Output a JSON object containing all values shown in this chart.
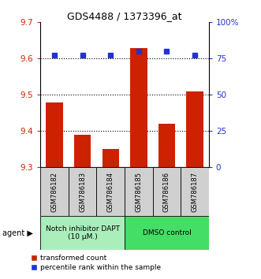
{
  "title": "GDS4488 / 1373396_at",
  "samples": [
    "GSM786182",
    "GSM786183",
    "GSM786184",
    "GSM786185",
    "GSM786186",
    "GSM786187"
  ],
  "red_values": [
    9.48,
    9.39,
    9.35,
    9.63,
    9.42,
    9.51
  ],
  "blue_values": [
    77.5,
    77.5,
    77.5,
    80.0,
    80.0,
    77.5
  ],
  "ylim_left": [
    9.3,
    9.7
  ],
  "ylim_right": [
    0,
    100
  ],
  "yticks_left": [
    9.3,
    9.4,
    9.5,
    9.6,
    9.7
  ],
  "yticks_right": [
    0,
    25,
    50,
    75,
    100
  ],
  "ytick_labels_right": [
    "0",
    "25",
    "50",
    "75",
    "100%"
  ],
  "grid_values": [
    9.4,
    9.5,
    9.6
  ],
  "group1_label": "Notch inhibitor DAPT\n(10 μM.)",
  "group2_label": "DMSO control",
  "group1_indices": [
    0,
    1,
    2
  ],
  "group2_indices": [
    3,
    4,
    5
  ],
  "group1_color": "#AAEEBB",
  "group2_color": "#44DD66",
  "red_color": "#CC2200",
  "blue_color": "#2233CC",
  "bar_bottom": 9.3,
  "legend_red": "transformed count",
  "legend_blue": "percentile rank within the sample",
  "agent_label": "agent"
}
